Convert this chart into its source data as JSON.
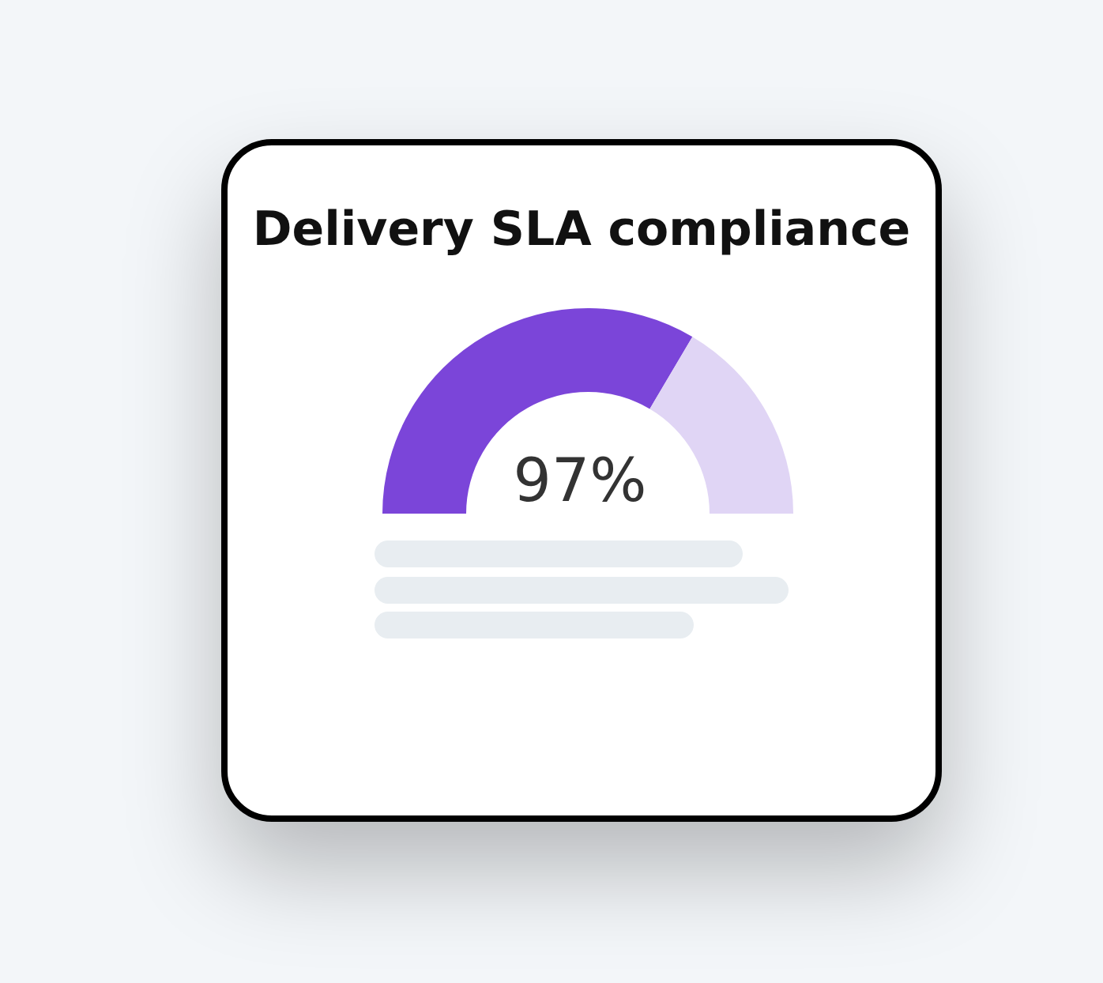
{
  "chart_data": {
    "type": "donut",
    "title": "Delivery SLA compliance",
    "categories": [
      null,
      null
    ],
    "values": [
      67,
      33
    ],
    "colors": [
      "#7b45d9",
      "#e0d5f5"
    ],
    "annotations": [
      "97%"
    ]
  }
}
